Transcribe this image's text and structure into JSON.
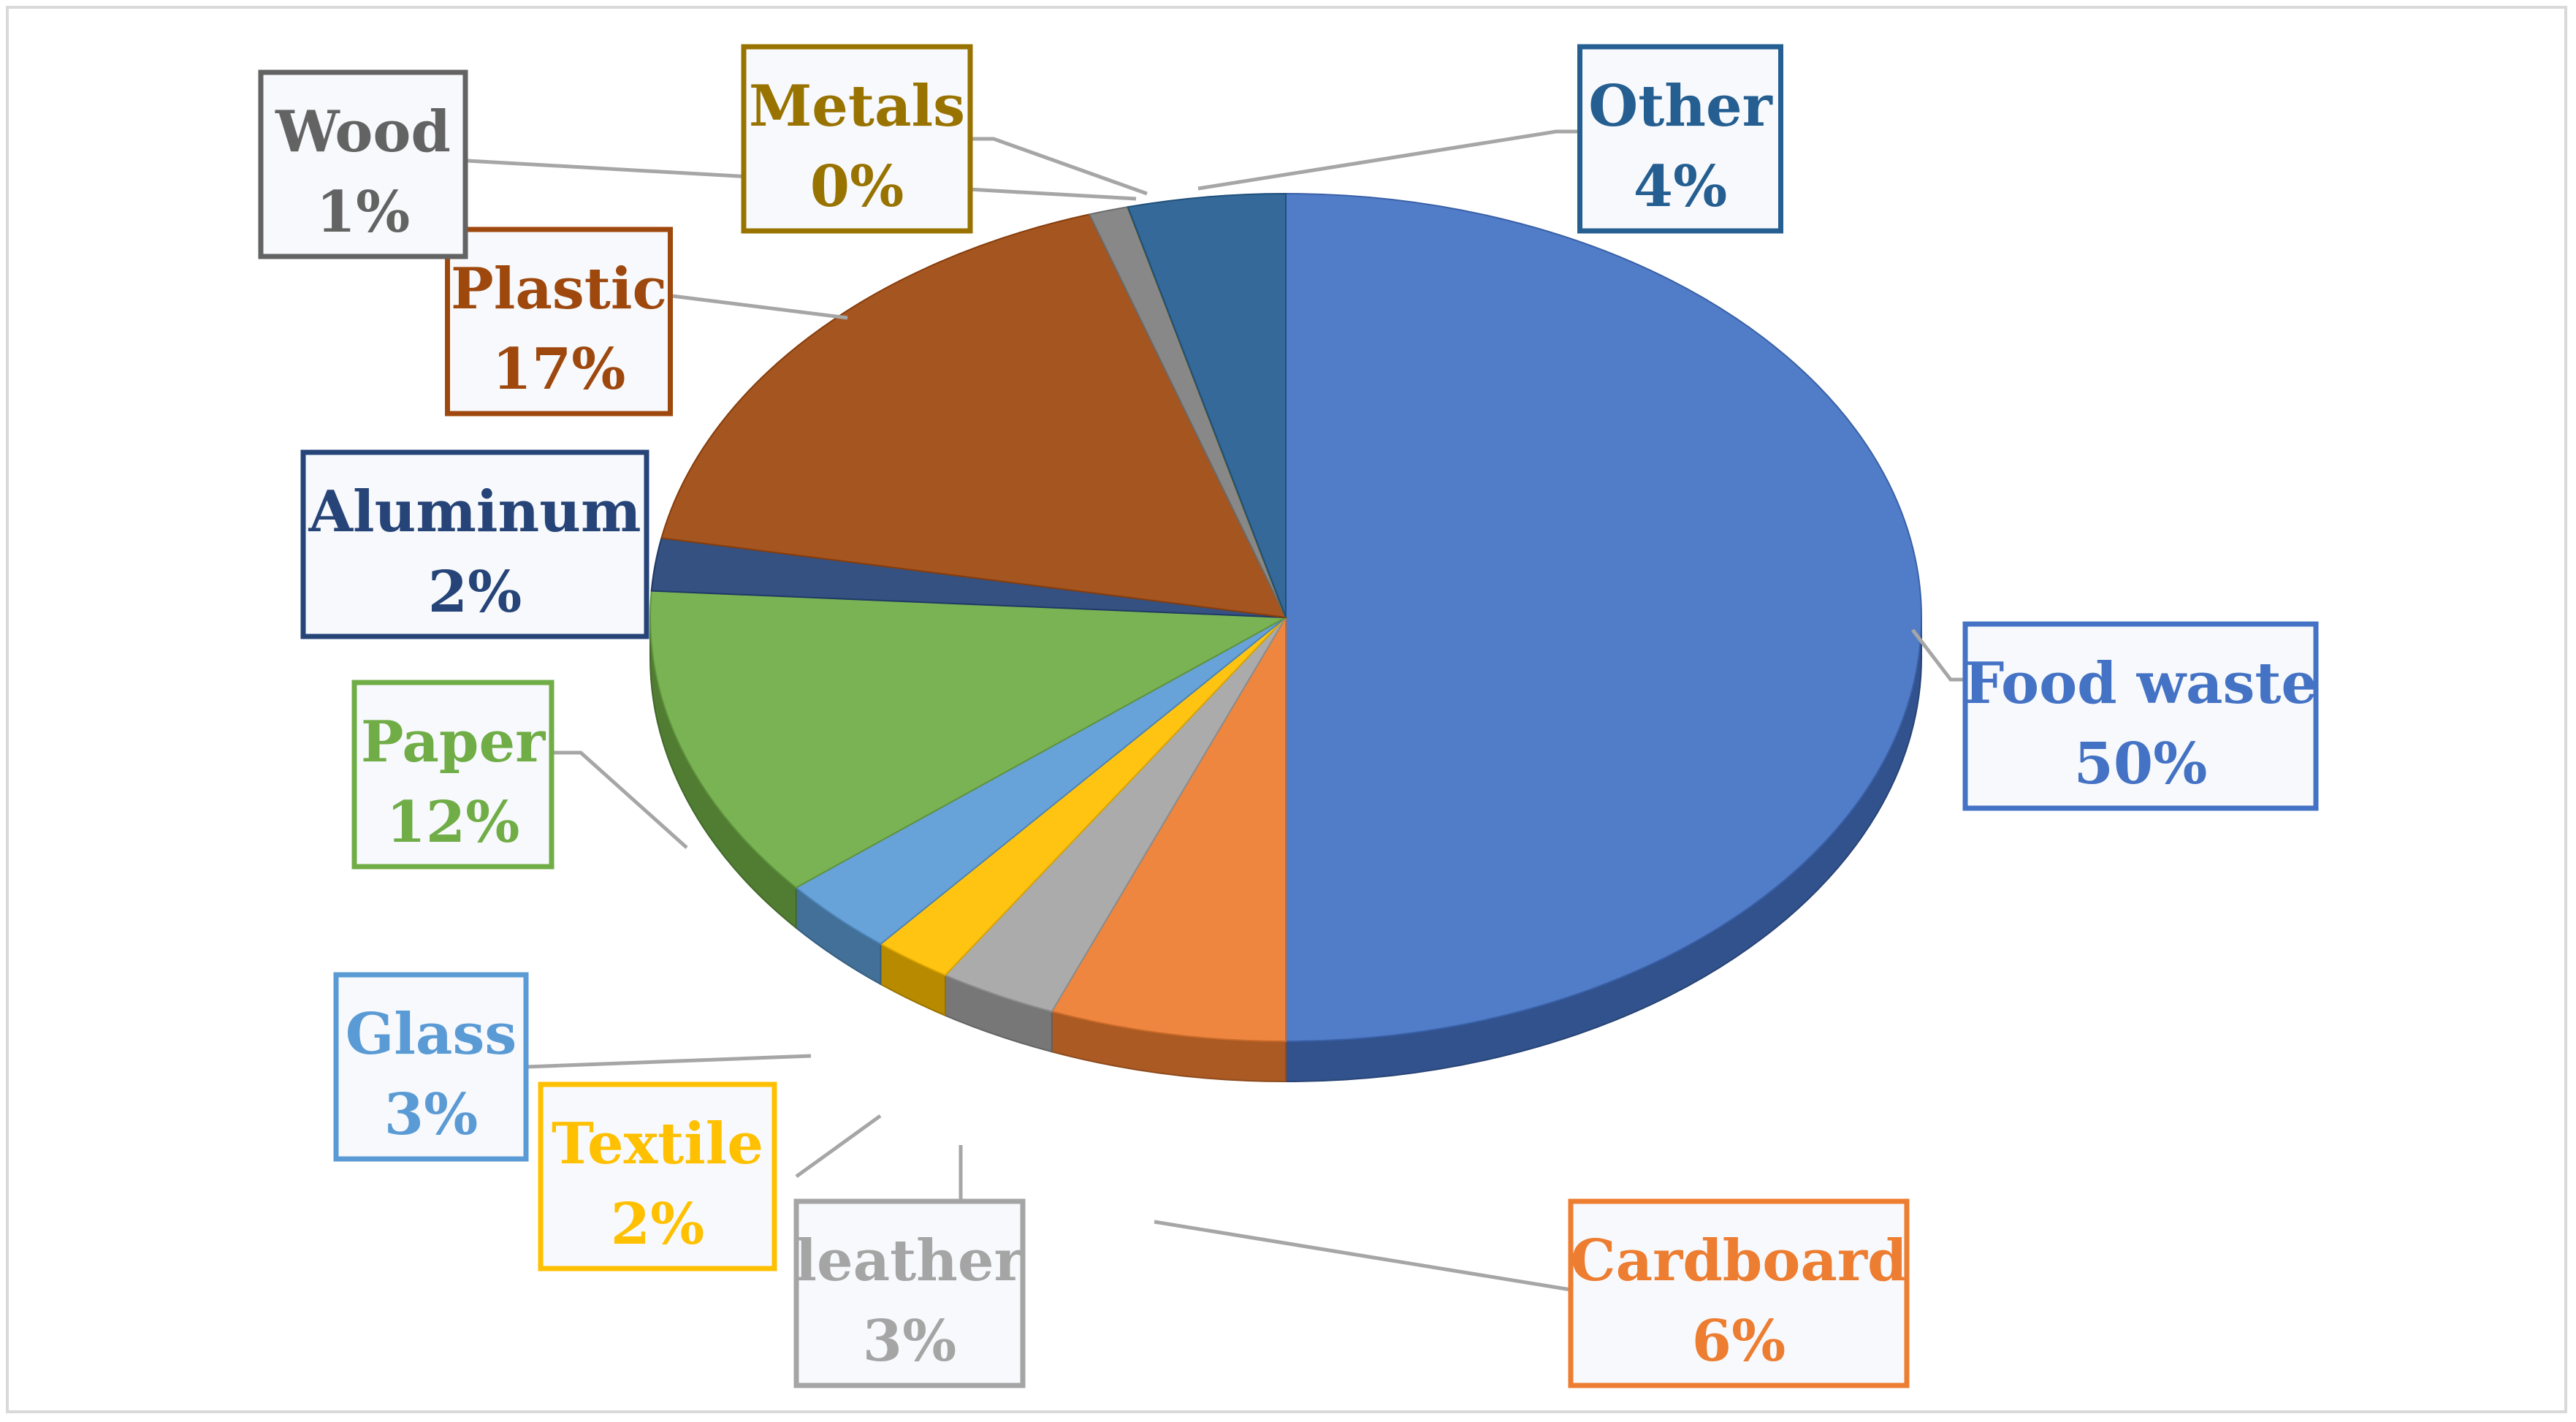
{
  "chart_data": {
    "type": "pie",
    "style": "3d",
    "slices": [
      {
        "label": "Food waste",
        "value": 50,
        "value_label": "50%",
        "color": "#4472C4",
        "label_color": "#4472C4"
      },
      {
        "label": "Cardboard",
        "value": 6,
        "value_label": "6%",
        "color": "#ED7D31",
        "label_color": "#ED7D31"
      },
      {
        "label": "leather",
        "value": 3,
        "value_label": "3%",
        "color": "#A5A5A5",
        "label_color": "#A5A5A5"
      },
      {
        "label": "Textile",
        "value": 2,
        "value_label": "2%",
        "color": "#FFC000",
        "label_color": "#FFC000"
      },
      {
        "label": "Glass",
        "value": 3,
        "value_label": "3%",
        "color": "#5B9BD5",
        "label_color": "#5B9BD5"
      },
      {
        "label": "Paper",
        "value": 12,
        "value_label": "12%",
        "color": "#70AD47",
        "label_color": "#70AD47"
      },
      {
        "label": "Aluminum",
        "value": 2,
        "value_label": "2%",
        "color": "#264478",
        "label_color": "#264478"
      },
      {
        "label": "Plastic",
        "value": 17,
        "value_label": "17%",
        "color": "#9E480E",
        "label_color": "#9E480E"
      },
      {
        "label": "Wood",
        "value": 1,
        "value_label": "1%",
        "color": "#7F7F7F",
        "label_color": "#636363"
      },
      {
        "label": "Metals",
        "value": 0,
        "value_label": "0%",
        "color": "#997300",
        "label_color": "#997300"
      },
      {
        "label": "Other",
        "value": 4,
        "value_label": "4%",
        "color": "#255E91",
        "label_color": "#255E91"
      }
    ]
  }
}
